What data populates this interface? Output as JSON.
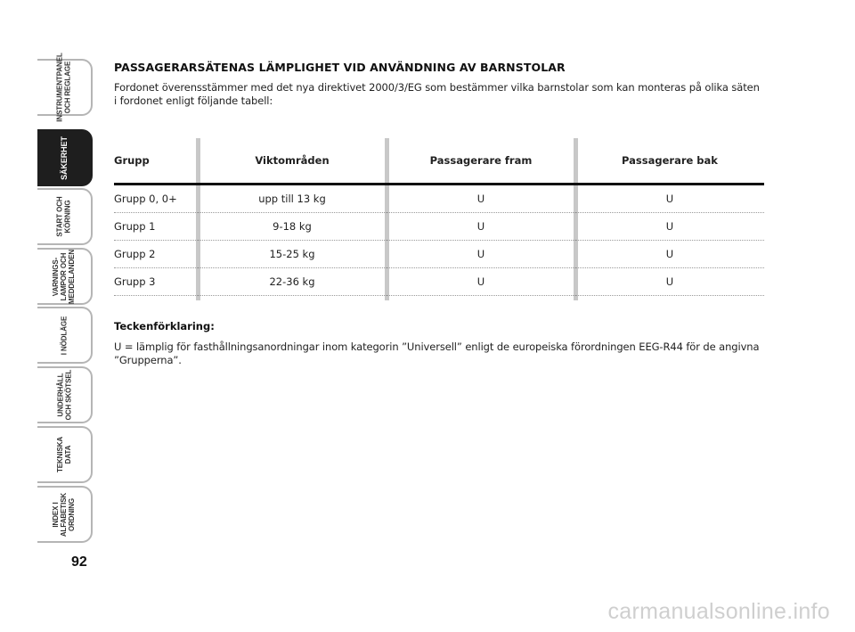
{
  "sidebar": {
    "tabs": [
      {
        "label": "INSTRUMENTPANEL\nOCH REGLAGE",
        "active": false
      },
      {
        "label": "SÄKERHET",
        "active": true
      },
      {
        "label": "START OCH\nKÖRNING",
        "active": false
      },
      {
        "label": "VARNINGS-\nLAMPOR OCH\nMEDDELANDEN",
        "active": false
      },
      {
        "label": "I NÖDLÄGE",
        "active": false
      },
      {
        "label": "UNDERHÅLL\nOCH SKÖTSEL",
        "active": false
      },
      {
        "label": "TEKNISKA\nDATA",
        "active": false
      },
      {
        "label": "INDEX I\nALFABETISK\nORDNING",
        "active": false
      }
    ],
    "page_number": "92"
  },
  "content": {
    "heading": "PASSAGERARSÄTENAS LÄMPLIGHET VID ANVÄNDNING AV BARNSTOLAR",
    "intro": "Fordonet överensstämmer med det nya direktivet 2000/3/EG som bestämmer vilka barnstolar som kan monteras på olika säten i fordonet enligt följande tabell:",
    "table": {
      "headers": [
        "Grupp",
        "Viktområden",
        "Passagerare fram",
        "Passagerare bak"
      ],
      "rows": [
        [
          "Grupp 0, 0+",
          "upp till 13 kg",
          "U",
          "U"
        ],
        [
          "Grupp 1",
          "9-18 kg",
          "U",
          "U"
        ],
        [
          "Grupp 2",
          "15-25 kg",
          "U",
          "U"
        ],
        [
          "Grupp 3",
          "22-36 kg",
          "U",
          "U"
        ]
      ]
    },
    "legend_title": "Teckenförklaring:",
    "legend_text": "U = lämplig för fasthållningsanordningar inom kategorin ”Universell” enligt de europeiska förordningen EEG-R44 för de angivna ”Grupperna”."
  },
  "watermark": "carmanualsonline.info",
  "colors": {
    "active_tab": "#1e1e1e",
    "tab_border": "#b5b5b5",
    "column_separator": "#c8c8c8",
    "watermark": "#cfcfcf"
  }
}
